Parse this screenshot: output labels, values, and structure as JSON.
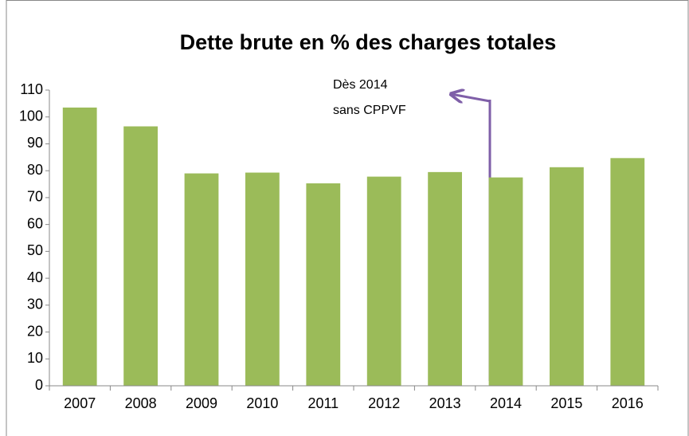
{
  "chart_data": {
    "type": "bar",
    "title": "Dette brute en % des charges totales",
    "categories": [
      "2007",
      "2008",
      "2009",
      "2010",
      "2011",
      "2012",
      "2013",
      "2014",
      "2015",
      "2016"
    ],
    "values": [
      103.5,
      96.5,
      79,
      79.3,
      75.3,
      77.8,
      79.5,
      77.5,
      81.3,
      84.7
    ],
    "color": "#9bbb59",
    "ylim": [
      0,
      110
    ],
    "yticks": [
      0,
      10,
      20,
      30,
      40,
      50,
      60,
      70,
      80,
      90,
      100,
      110
    ],
    "grid": false,
    "annotation": [
      "Dès 2014",
      "sans CPPVF"
    ]
  }
}
